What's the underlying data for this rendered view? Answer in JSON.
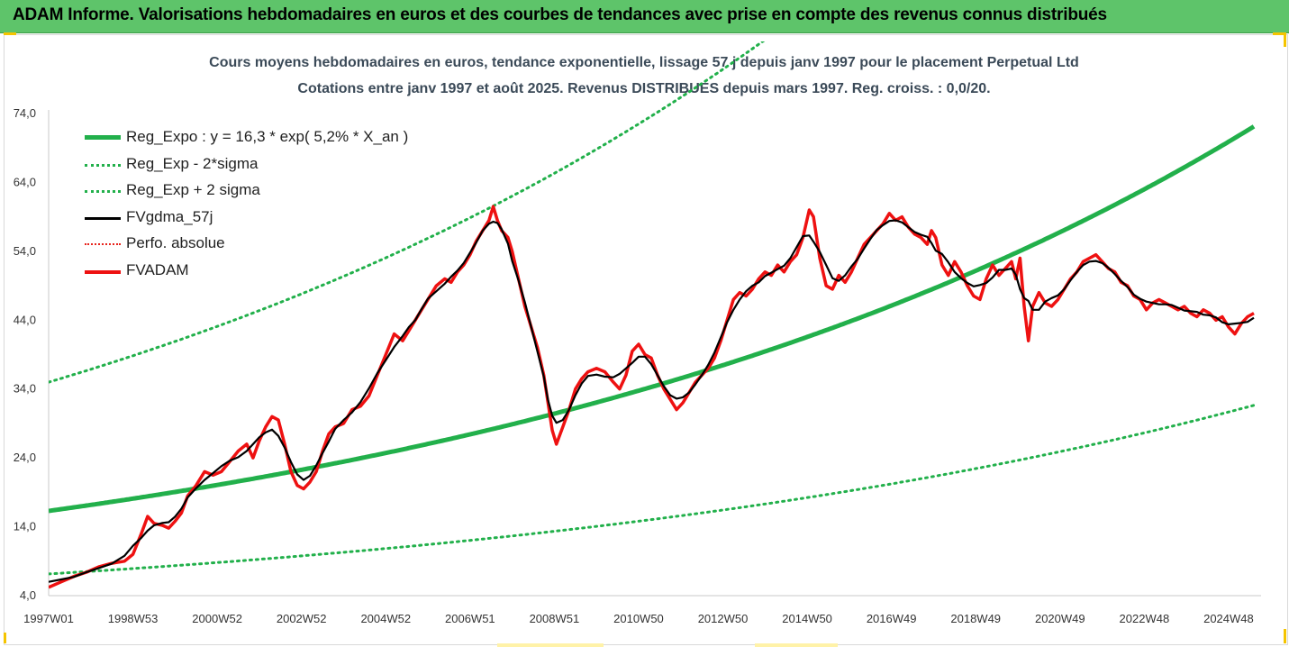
{
  "header": {
    "title": "ADAM Informe. Valorisations hebdomadaires en euros et des courbes de tendances avec prise en compte des revenus connus distribués"
  },
  "chart_data": {
    "type": "line",
    "title_line1": "Cours moyens hebdomadaires en euros, tendance exponentielle, lissage 57 j depuis janv 1997 pour le placement Perpetual Ltd",
    "title_line2": "Cotations entre janv 1997 et août 2025.  Revenus DISTRIBUES depuis mars 1997. Reg. croiss.  : 0,0/20.",
    "xlabel": "",
    "ylabel": "",
    "ylim": [
      4.0,
      74.0
    ],
    "xlim": [
      1997.0,
      2025.6
    ],
    "y_ticks": [
      "4,0",
      "14,0",
      "24,0",
      "34,0",
      "44,0",
      "54,0",
      "64,0",
      "74,0"
    ],
    "x_ticks": [
      {
        "label": "1997W01",
        "t": 1997.0
      },
      {
        "label": "1998W53",
        "t": 1999.0
      },
      {
        "label": "2000W52",
        "t": 2001.0
      },
      {
        "label": "2002W52",
        "t": 2003.0
      },
      {
        "label": "2004W52",
        "t": 2005.0
      },
      {
        "label": "2006W51",
        "t": 2007.0
      },
      {
        "label": "2008W51",
        "t": 2009.0
      },
      {
        "label": "2010W50",
        "t": 2011.0
      },
      {
        "label": "2012W50",
        "t": 2013.0
      },
      {
        "label": "2014W50",
        "t": 2015.0
      },
      {
        "label": "2016W49",
        "t": 2017.0
      },
      {
        "label": "2018W49",
        "t": 2019.0
      },
      {
        "label": "2020W49",
        "t": 2021.0
      },
      {
        "label": "2022W48",
        "t": 2023.0
      },
      {
        "label": "2024W48",
        "t": 2025.0
      }
    ],
    "legend": "top-left",
    "grid": false,
    "series": [
      {
        "name": "Reg_Expo : y = 16,3 * exp( 5,2% *  X_an )",
        "color": "#22b04b",
        "style": "thick",
        "formula": {
          "a": 16.3,
          "rate": 0.052
        }
      },
      {
        "name": "Reg_Exp - 2*sigma",
        "color": "#22b04b",
        "style": "dotted",
        "formula": {
          "a": 7.15,
          "rate": 0.052
        }
      },
      {
        "name": "Reg_Exp + 2 sigma",
        "color": "#22b04b",
        "style": "dotted",
        "formula": {
          "a": 35.0,
          "rate": 0.052
        }
      },
      {
        "name": "FVgdma_57j",
        "color": "#000000",
        "style": "solid",
        "smoothed_of": "FVADAM"
      },
      {
        "name": "Perfo. absolue",
        "color": "#e8231c",
        "style": "dotted"
      },
      {
        "name": "FVADAM",
        "color": "#ee1111",
        "style": "thick",
        "points": [
          [
            1997.0,
            5.2
          ],
          [
            1997.3,
            6.0
          ],
          [
            1997.6,
            6.8
          ],
          [
            1997.9,
            7.4
          ],
          [
            1998.2,
            8.2
          ],
          [
            1998.5,
            8.7
          ],
          [
            1998.8,
            9.0
          ],
          [
            1999.0,
            10.0
          ],
          [
            1999.2,
            13.0
          ],
          [
            1999.35,
            15.5
          ],
          [
            1999.5,
            14.5
          ],
          [
            1999.7,
            14.2
          ],
          [
            1999.85,
            13.8
          ],
          [
            2000.0,
            14.8
          ],
          [
            2000.15,
            16.0
          ],
          [
            2000.3,
            18.5
          ],
          [
            2000.5,
            20.0
          ],
          [
            2000.7,
            22.0
          ],
          [
            2000.9,
            21.5
          ],
          [
            2001.1,
            22.0
          ],
          [
            2001.3,
            23.5
          ],
          [
            2001.5,
            25.0
          ],
          [
            2001.7,
            26.0
          ],
          [
            2001.85,
            24.0
          ],
          [
            2002.0,
            26.5
          ],
          [
            2002.15,
            28.5
          ],
          [
            2002.3,
            30.0
          ],
          [
            2002.45,
            29.5
          ],
          [
            2002.6,
            26.0
          ],
          [
            2002.75,
            22.0
          ],
          [
            2002.9,
            20.0
          ],
          [
            2003.05,
            19.5
          ],
          [
            2003.2,
            20.5
          ],
          [
            2003.35,
            22.0
          ],
          [
            2003.5,
            25.0
          ],
          [
            2003.65,
            27.5
          ],
          [
            2003.8,
            28.5
          ],
          [
            2004.0,
            29.0
          ],
          [
            2004.2,
            31.0
          ],
          [
            2004.4,
            31.5
          ],
          [
            2004.6,
            33.0
          ],
          [
            2004.8,
            36.0
          ],
          [
            2005.0,
            39.0
          ],
          [
            2005.2,
            42.0
          ],
          [
            2005.4,
            41.0
          ],
          [
            2005.55,
            42.5
          ],
          [
            2005.7,
            44.0
          ],
          [
            2005.85,
            45.5
          ],
          [
            2006.0,
            47.0
          ],
          [
            2006.2,
            49.0
          ],
          [
            2006.4,
            50.0
          ],
          [
            2006.55,
            49.5
          ],
          [
            2006.7,
            51.0
          ],
          [
            2006.85,
            52.0
          ],
          [
            2007.0,
            53.5
          ],
          [
            2007.15,
            55.5
          ],
          [
            2007.3,
            57.0
          ],
          [
            2007.45,
            58.5
          ],
          [
            2007.55,
            60.5
          ],
          [
            2007.65,
            58.5
          ],
          [
            2007.75,
            57.0
          ],
          [
            2007.9,
            56.0
          ],
          [
            2008.0,
            54.0
          ],
          [
            2008.15,
            50.0
          ],
          [
            2008.3,
            46.0
          ],
          [
            2008.45,
            43.0
          ],
          [
            2008.6,
            40.0
          ],
          [
            2008.75,
            36.0
          ],
          [
            2008.85,
            32.0
          ],
          [
            2008.95,
            28.0
          ],
          [
            2009.05,
            26.0
          ],
          [
            2009.2,
            28.5
          ],
          [
            2009.35,
            31.0
          ],
          [
            2009.5,
            34.0
          ],
          [
            2009.65,
            35.5
          ],
          [
            2009.8,
            36.5
          ],
          [
            2010.0,
            37.0
          ],
          [
            2010.2,
            36.5
          ],
          [
            2010.4,
            35.0
          ],
          [
            2010.55,
            34.0
          ],
          [
            2010.7,
            36.0
          ],
          [
            2010.85,
            39.5
          ],
          [
            2011.0,
            40.5
          ],
          [
            2011.15,
            39.0
          ],
          [
            2011.3,
            38.5
          ],
          [
            2011.45,
            36.0
          ],
          [
            2011.6,
            34.0
          ],
          [
            2011.75,
            32.5
          ],
          [
            2011.9,
            31.0
          ],
          [
            2012.05,
            32.0
          ],
          [
            2012.2,
            33.5
          ],
          [
            2012.35,
            35.0
          ],
          [
            2012.5,
            36.0
          ],
          [
            2012.65,
            37.0
          ],
          [
            2012.8,
            38.5
          ],
          [
            2012.95,
            41.0
          ],
          [
            2013.1,
            44.0
          ],
          [
            2013.25,
            47.0
          ],
          [
            2013.4,
            48.0
          ],
          [
            2013.55,
            47.5
          ],
          [
            2013.7,
            48.5
          ],
          [
            2013.85,
            50.0
          ],
          [
            2014.0,
            51.0
          ],
          [
            2014.15,
            50.5
          ],
          [
            2014.3,
            52.0
          ],
          [
            2014.45,
            51.0
          ],
          [
            2014.6,
            52.5
          ],
          [
            2014.75,
            53.5
          ],
          [
            2014.9,
            56.0
          ],
          [
            2015.05,
            60.0
          ],
          [
            2015.15,
            59.0
          ],
          [
            2015.3,
            53.0
          ],
          [
            2015.45,
            49.0
          ],
          [
            2015.6,
            48.5
          ],
          [
            2015.75,
            50.5
          ],
          [
            2015.9,
            49.5
          ],
          [
            2016.05,
            51.0
          ],
          [
            2016.2,
            53.0
          ],
          [
            2016.35,
            55.0
          ],
          [
            2016.5,
            56.0
          ],
          [
            2016.65,
            57.0
          ],
          [
            2016.8,
            58.0
          ],
          [
            2016.95,
            59.5
          ],
          [
            2017.1,
            58.5
          ],
          [
            2017.25,
            59.0
          ],
          [
            2017.4,
            57.5
          ],
          [
            2017.55,
            56.5
          ],
          [
            2017.7,
            56.0
          ],
          [
            2017.85,
            55.0
          ],
          [
            2017.95,
            57.0
          ],
          [
            2018.05,
            56.0
          ],
          [
            2018.2,
            52.0
          ],
          [
            2018.35,
            50.5
          ],
          [
            2018.5,
            52.5
          ],
          [
            2018.65,
            51.0
          ],
          [
            2018.8,
            49.0
          ],
          [
            2018.95,
            47.5
          ],
          [
            2019.1,
            47.0
          ],
          [
            2019.25,
            50.0
          ],
          [
            2019.4,
            52.0
          ],
          [
            2019.55,
            50.5
          ],
          [
            2019.7,
            51.5
          ],
          [
            2019.85,
            52.5
          ],
          [
            2019.95,
            50.0
          ],
          [
            2020.05,
            53.0
          ],
          [
            2020.15,
            46.0
          ],
          [
            2020.25,
            41.0
          ],
          [
            2020.35,
            46.0
          ],
          [
            2020.5,
            48.0
          ],
          [
            2020.65,
            46.5
          ],
          [
            2020.8,
            46.0
          ],
          [
            2020.95,
            47.0
          ],
          [
            2021.1,
            48.5
          ],
          [
            2021.25,
            50.0
          ],
          [
            2021.4,
            51.0
          ],
          [
            2021.55,
            52.5
          ],
          [
            2021.7,
            53.0
          ],
          [
            2021.85,
            53.5
          ],
          [
            2022.0,
            52.5
          ],
          [
            2022.15,
            51.5
          ],
          [
            2022.3,
            51.0
          ],
          [
            2022.45,
            49.5
          ],
          [
            2022.6,
            49.0
          ],
          [
            2022.75,
            47.5
          ],
          [
            2022.9,
            47.0
          ],
          [
            2023.05,
            45.5
          ],
          [
            2023.2,
            46.5
          ],
          [
            2023.35,
            47.0
          ],
          [
            2023.5,
            46.5
          ],
          [
            2023.65,
            46.0
          ],
          [
            2023.8,
            45.5
          ],
          [
            2023.95,
            46.0
          ],
          [
            2024.1,
            45.0
          ],
          [
            2024.25,
            44.5
          ],
          [
            2024.4,
            45.5
          ],
          [
            2024.55,
            45.0
          ],
          [
            2024.7,
            44.0
          ],
          [
            2024.85,
            44.5
          ],
          [
            2025.0,
            43.0
          ],
          [
            2025.15,
            42.0
          ],
          [
            2025.3,
            43.5
          ],
          [
            2025.45,
            44.5
          ],
          [
            2025.6,
            45.0
          ]
        ]
      }
    ]
  }
}
